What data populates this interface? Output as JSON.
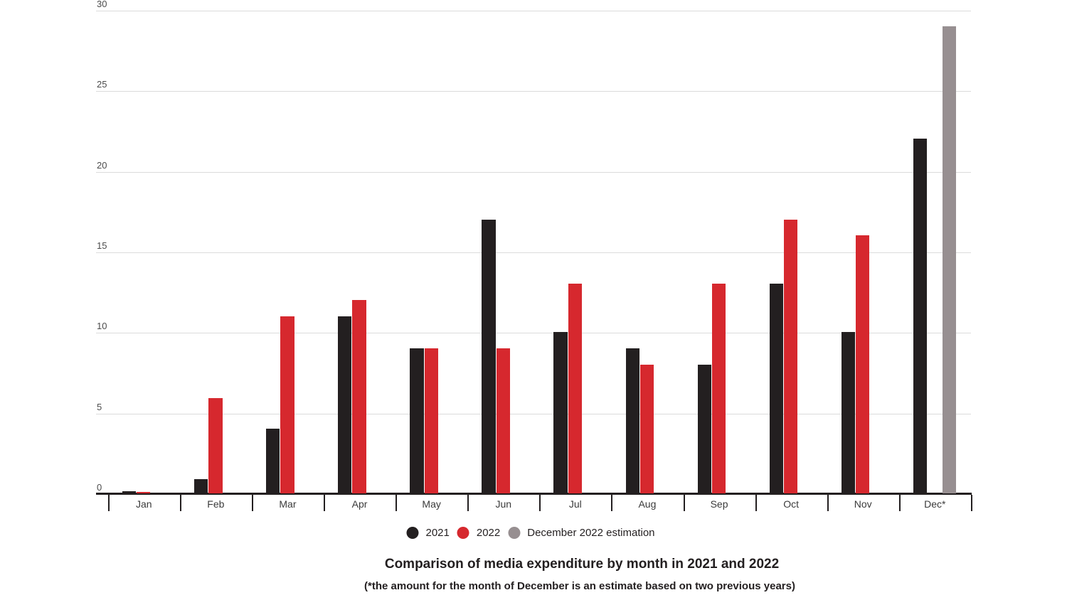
{
  "chart_data": {
    "type": "bar",
    "title": "Comparison of media expenditure by month in 2021 and 2022",
    "subtitle": "(*the amount for the month of December is an estimate based on two previous years)",
    "categories": [
      "Jan",
      "Feb",
      "Mar",
      "Apr",
      "May",
      "Jun",
      "Jul",
      "Aug",
      "Sep",
      "Oct",
      "Nov",
      "Dec*"
    ],
    "series": [
      {
        "name": "2021",
        "color": "#231f20",
        "values": [
          0.15,
          0.9,
          4,
          11,
          9,
          17,
          10,
          9,
          8,
          13,
          10,
          22
        ]
      },
      {
        "name": "2022",
        "color": "#d6282e",
        "values": [
          0.1,
          5.9,
          11,
          12,
          9,
          9,
          13,
          8,
          13,
          17,
          16,
          null
        ]
      },
      {
        "name": "December 2022 estimation",
        "color": "#978f91",
        "values": [
          null,
          null,
          null,
          null,
          null,
          null,
          null,
          null,
          null,
          null,
          null,
          29
        ]
      }
    ],
    "y_axis": {
      "min": 0,
      "max": 30,
      "step": 5,
      "ticks": [
        0,
        5,
        10,
        15,
        20,
        25,
        30
      ]
    },
    "grid": true,
    "legend_position": "bottom",
    "colors": {
      "gridline": "#dbdbdb",
      "axis": "#231f20",
      "y_label": "#4c4c4c",
      "month_label": "#3a3a3a"
    }
  }
}
